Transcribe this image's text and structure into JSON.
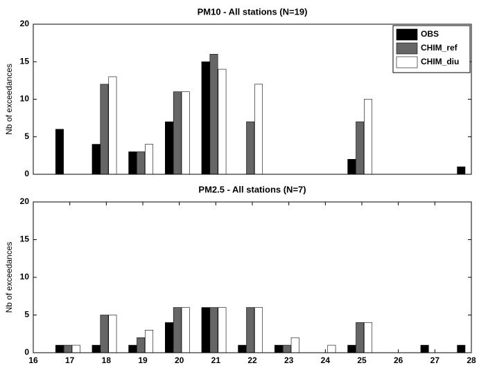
{
  "chart_data": [
    {
      "type": "bar",
      "title": "PM10 - All stations (N=19)",
      "y_label": "Nb of exceedances",
      "x": [
        17,
        18,
        19,
        20,
        21,
        22,
        23,
        24,
        25,
        26,
        27,
        28
      ],
      "series": [
        {
          "name": "OBS",
          "color": "#000000",
          "values": [
            6,
            4,
            3,
            7,
            15,
            0,
            0,
            0,
            2,
            0,
            0,
            1
          ]
        },
        {
          "name": "CHIM_ref",
          "color": "#666666",
          "values": [
            0,
            12,
            3,
            11,
            16,
            7,
            0,
            0,
            7,
            0,
            0,
            0
          ]
        },
        {
          "name": "CHIM_diu",
          "color": "#ffffff",
          "values": [
            0,
            13,
            4,
            11,
            14,
            12,
            0,
            0,
            10,
            0,
            0,
            0
          ]
        }
      ],
      "xlim": [
        16,
        28
      ],
      "ylim": [
        0,
        20
      ],
      "yticks": [
        0,
        5,
        10,
        15,
        20
      ],
      "legend": "upper right"
    },
    {
      "type": "bar",
      "title": "PM2.5 - All stations (N=7)",
      "y_label": "Nb of exceedances",
      "x": [
        17,
        18,
        19,
        20,
        21,
        22,
        23,
        24,
        25,
        26,
        27,
        28
      ],
      "series": [
        {
          "color": "#000000",
          "values": [
            1,
            1,
            1,
            4,
            6,
            1,
            1,
            0,
            1,
            0,
            1,
            1
          ]
        },
        {
          "color": "#666666",
          "values": [
            1,
            5,
            2,
            6,
            6,
            6,
            1,
            0,
            4,
            0,
            0,
            0
          ]
        },
        {
          "color": "#ffffff",
          "values": [
            1,
            5,
            3,
            6,
            6,
            6,
            2,
            1,
            4,
            0,
            0,
            0
          ]
        }
      ],
      "xlim": [
        16,
        28
      ],
      "xticks": [
        16,
        17,
        18,
        19,
        20,
        21,
        22,
        23,
        24,
        25,
        26,
        27,
        28
      ],
      "ylim": [
        0,
        20
      ],
      "yticks": [
        0,
        5,
        10,
        15,
        20
      ]
    }
  ]
}
